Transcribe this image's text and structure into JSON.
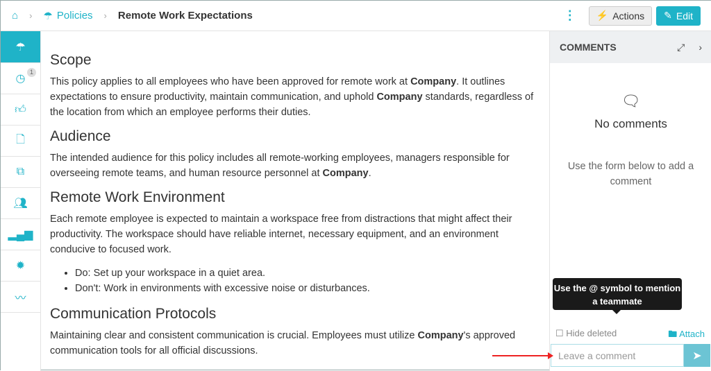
{
  "breadcrumb": {
    "home_icon": "home-icon",
    "section": "Policies",
    "current": "Remote Work Expectations"
  },
  "toolbar": {
    "actions": "Actions",
    "edit": "Edit"
  },
  "sidebar": {
    "items": [
      {
        "icon": "umbrella-icon",
        "active": true
      },
      {
        "icon": "clock-icon",
        "badge": "1"
      },
      {
        "icon": "thumbs-up-icon"
      },
      {
        "icon": "document-icon"
      },
      {
        "icon": "copy-icon"
      },
      {
        "icon": "users-icon"
      },
      {
        "icon": "signal-icon"
      },
      {
        "icon": "gear-icon"
      },
      {
        "icon": "signature-icon"
      }
    ]
  },
  "content": {
    "scope_h": "Scope",
    "scope_p": [
      "This policy applies to all employees who have been approved for remote work at ",
      "Company",
      ". It outlines expectations to ensure productivity, maintain communication, and uphold ",
      "Company",
      " standards, regardless of the location from which an employee performs their duties."
    ],
    "aud_h": "Audience",
    "aud_p": [
      "The intended audience for this policy includes all remote-working employees, managers responsible for overseeing remote teams, and human resource personnel at ",
      "Company",
      "."
    ],
    "env_h": "Remote Work Environment",
    "env_p": "Each remote employee is expected to maintain a workspace free from distractions that might affect their productivity. The workspace should have reliable internet, necessary equipment, and an environment conducive to focused work.",
    "env_list": [
      "Do: Set up your workspace in a quiet area.",
      "Don't: Work in environments with excessive noise or disturbances."
    ],
    "comm_h": "Communication Protocols",
    "comm_p": [
      "Maintaining clear and consistent communication is crucial. Employees must utilize ",
      "Company",
      "'s approved communication tools for all official discussions."
    ]
  },
  "comments": {
    "title": "COMMENTS",
    "empty_title": "No comments",
    "empty_hint": "Use the form below to add a comment",
    "hide_deleted": "Hide deleted",
    "attach": "Attach",
    "tooltip": "Use the @ symbol to mention a teammate",
    "placeholder": "Leave a comment"
  }
}
